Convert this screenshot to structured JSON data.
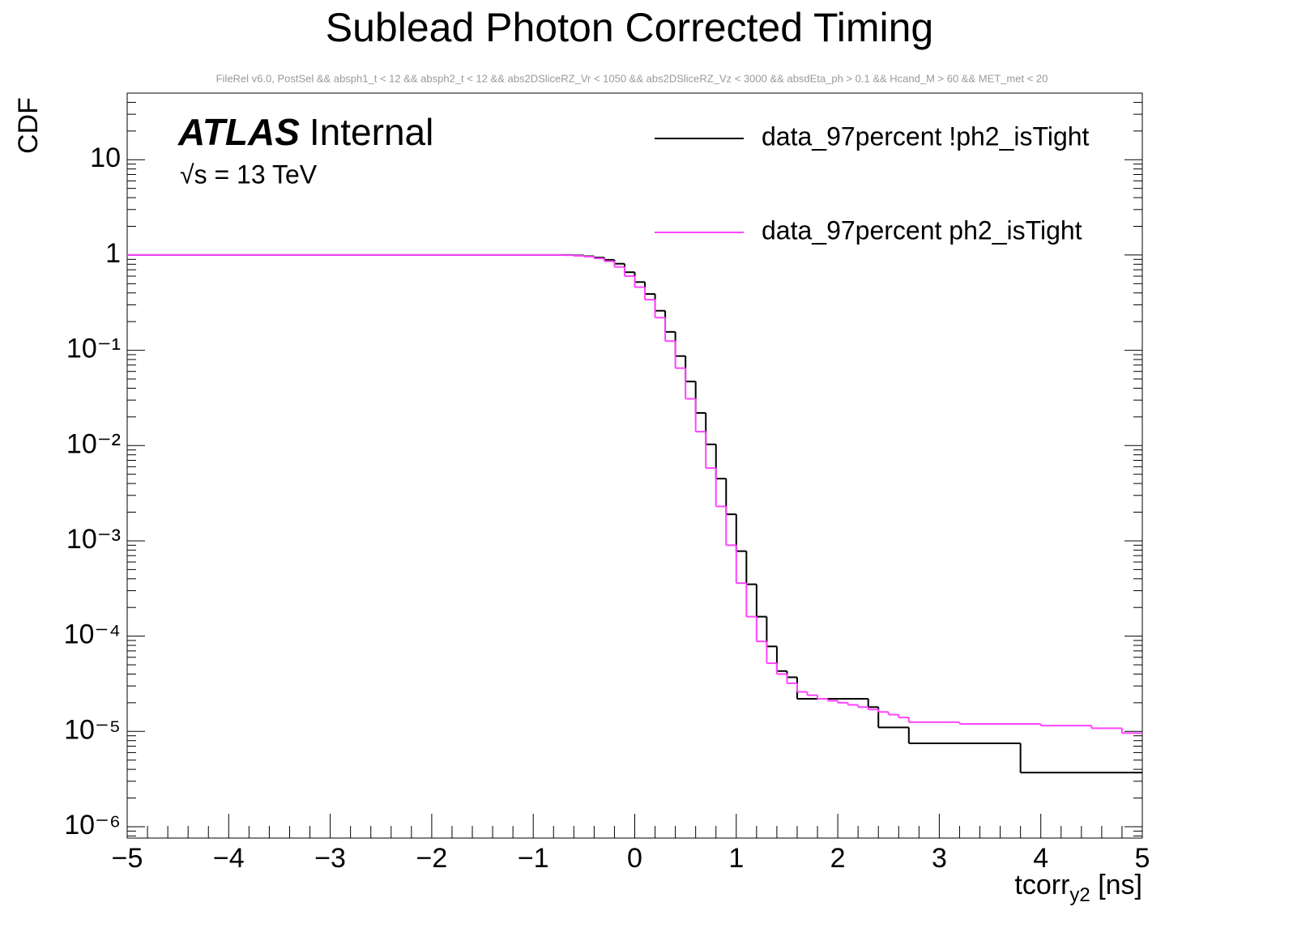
{
  "chart_data": {
    "type": "step",
    "title": "Sublead Photon Corrected Timing",
    "subtitle": "FileRel v6.0, PostSel &&  absph1_t < 12 && absph2_t < 12 && abs2DSliceRZ_Vr < 1050 && abs2DSliceRZ_Vz < 3000 && absdEta_ph > 0.1 && Hcand_M > 60 && MET_met < 20",
    "y_label": "CDF",
    "x_label": [
      "tcorr",
      "y2",
      " [ns]"
    ],
    "atlas_label": [
      "ATLAS",
      "Internal"
    ],
    "energy_label": "√s = 13 TeV",
    "log_y": true,
    "legend_position": "top-right",
    "xlim": [
      -5,
      5
    ],
    "ylim": [
      7.6e-07,
      50
    ],
    "xticks": [
      {
        "value": -5,
        "label": "−5"
      },
      {
        "value": -4,
        "label": "−4"
      },
      {
        "value": -3,
        "label": "−3"
      },
      {
        "value": -2,
        "label": "−2"
      },
      {
        "value": -1,
        "label": "−1"
      },
      0,
      1,
      2,
      3,
      4,
      5
    ],
    "yticks": [
      {
        "value": 1e-06,
        "label": "10⁻⁶"
      },
      {
        "value": 1e-05,
        "label": "10⁻⁵"
      },
      {
        "value": 0.0001,
        "label": "10⁻⁴"
      },
      {
        "value": 0.001,
        "label": "10⁻³"
      },
      {
        "value": 0.01,
        "label": "10⁻²"
      },
      {
        "value": 0.1,
        "label": "10⁻¹"
      },
      1,
      10
    ],
    "series": [
      {
        "name": "data_97percent !ph2_isTight",
        "color": "#000000",
        "bins": [
          -5,
          -0.6,
          -0.5,
          -0.4,
          -0.3,
          -0.2,
          -0.1,
          0,
          0.1,
          0.2,
          0.3,
          0.4,
          0.5,
          0.6,
          0.7,
          0.8,
          0.9,
          1.0,
          1.1,
          1.2,
          1.3,
          1.4,
          1.5,
          1.6,
          2.3,
          2.4,
          2.7,
          3.8,
          5
        ],
        "values": [
          1,
          0.99,
          0.97,
          0.94,
          0.89,
          0.81,
          0.66,
          0.52,
          0.39,
          0.26,
          0.156,
          0.087,
          0.047,
          0.022,
          0.0103,
          0.0045,
          0.0019,
          0.00078,
          0.00035,
          0.00016,
          7.8e-05,
          4.3e-05,
          3.7e-05,
          2.2e-05,
          1.8e-05,
          1.1e-05,
          7.5e-06,
          3.7e-06
        ]
      },
      {
        "name": "data_97percent ph2_isTight",
        "color": "#ff44ff",
        "bins": [
          -5,
          -0.7,
          -0.6,
          -0.5,
          -0.4,
          -0.3,
          -0.2,
          -0.1,
          0,
          0.1,
          0.2,
          0.3,
          0.4,
          0.5,
          0.6,
          0.7,
          0.8,
          0.9,
          1.0,
          1.1,
          1.2,
          1.3,
          1.4,
          1.5,
          1.6,
          1.7,
          1.8,
          1.9,
          2.0,
          2.1,
          2.2,
          2.3,
          2.4,
          2.5,
          2.6,
          2.7,
          3.2,
          4.0,
          4.5,
          4.8,
          5
        ],
        "values": [
          1,
          0.995,
          0.98,
          0.96,
          0.92,
          0.86,
          0.75,
          0.6,
          0.46,
          0.34,
          0.22,
          0.125,
          0.065,
          0.031,
          0.014,
          0.0058,
          0.0023,
          0.0009,
          0.00036,
          0.00016,
          8.8e-05,
          5.2e-05,
          4e-05,
          3.2e-05,
          2.6e-05,
          2.4e-05,
          2.2e-05,
          2.1e-05,
          2e-05,
          1.9e-05,
          1.8e-05,
          1.7e-05,
          1.6e-05,
          1.5e-05,
          1.4e-05,
          1.25e-05,
          1.2e-05,
          1.15e-05,
          1.08e-05,
          9.6e-06
        ]
      }
    ]
  }
}
